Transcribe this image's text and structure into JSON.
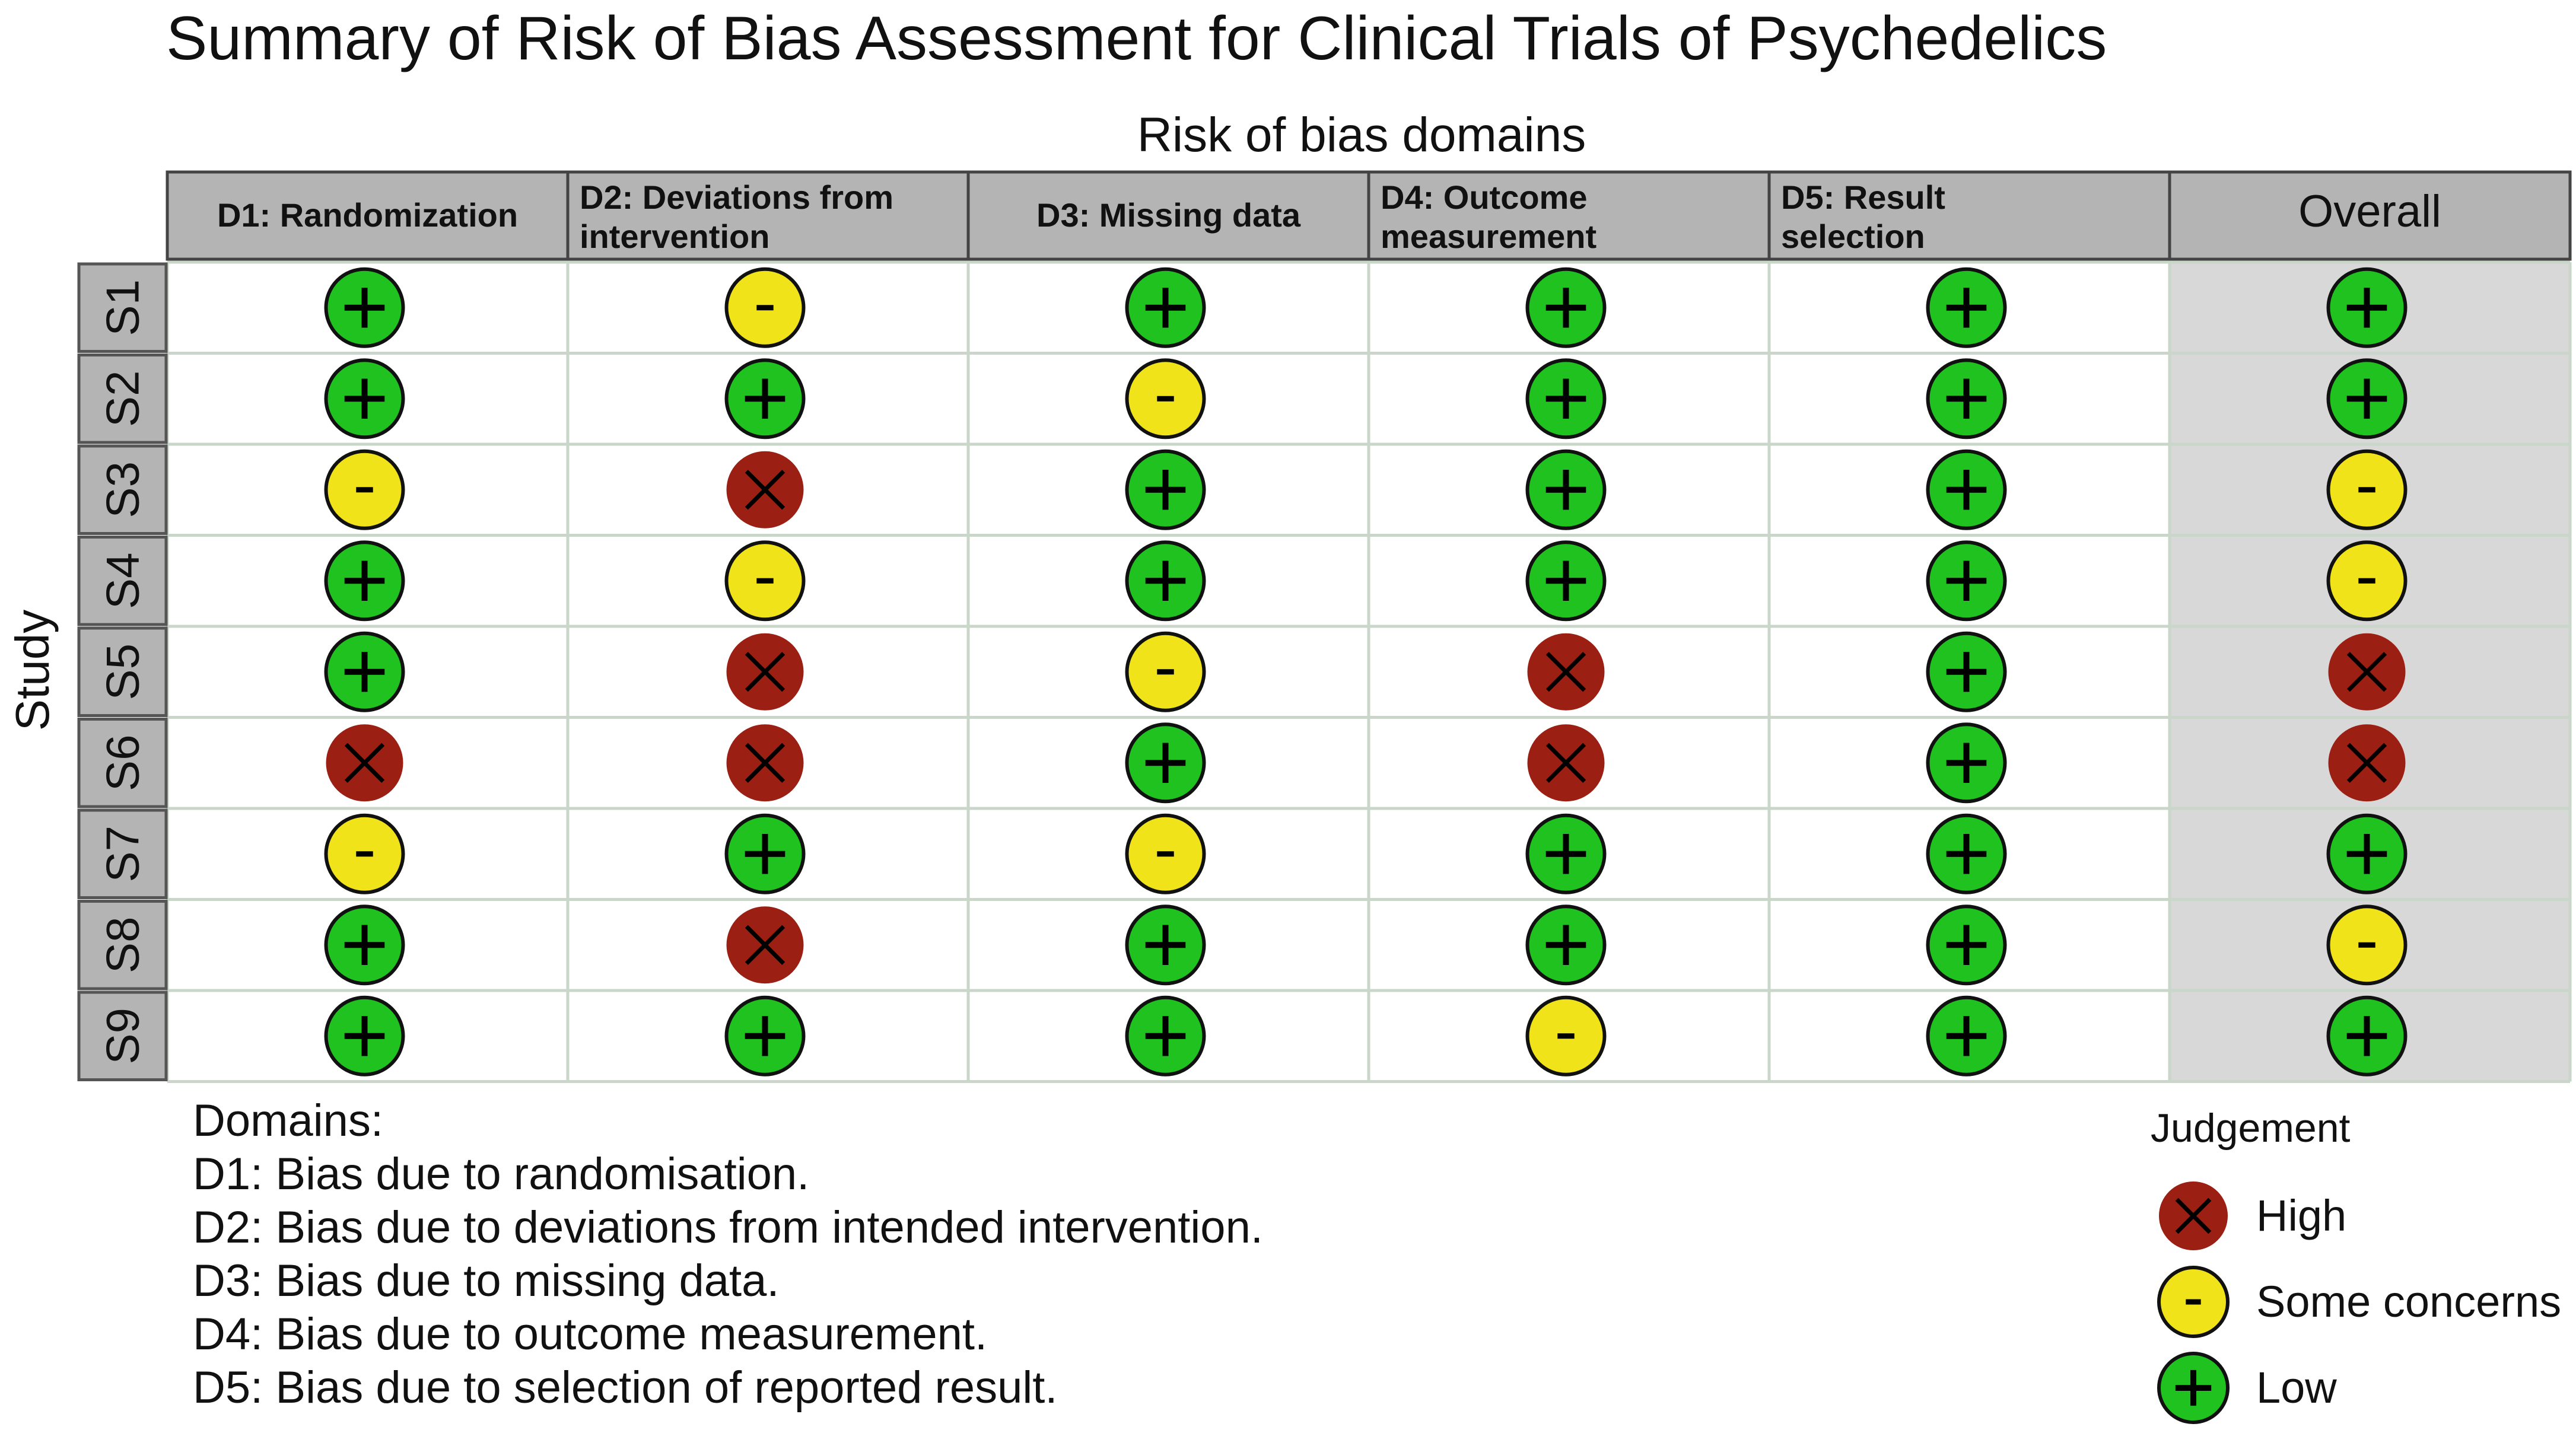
{
  "chart_data": {
    "type": "table",
    "title": "Summary of Risk of Bias Assessment for Clinical Trials of Psychedelics",
    "domains_label": "Risk of bias domains",
    "study_label": "Study",
    "columns": [
      {
        "line1": "D1: Randomization",
        "line2": ""
      },
      {
        "line1": "D2: Deviations from",
        "line2": "intervention"
      },
      {
        "line1": "D3: Missing data",
        "line2": ""
      },
      {
        "line1": "D4: Outcome",
        "line2": "measurement"
      },
      {
        "line1": "D5: Result",
        "line2": "selection"
      },
      {
        "line1": "Overall",
        "line2": ""
      }
    ],
    "studies": [
      "S1",
      "S2",
      "S3",
      "S4",
      "S5",
      "S6",
      "S7",
      "S8",
      "S9"
    ],
    "judgements": [
      [
        "low",
        "some",
        "low",
        "low",
        "low",
        "low"
      ],
      [
        "low",
        "low",
        "some",
        "low",
        "low",
        "low"
      ],
      [
        "some",
        "high",
        "low",
        "low",
        "low",
        "some"
      ],
      [
        "low",
        "some",
        "low",
        "low",
        "low",
        "some"
      ],
      [
        "low",
        "high",
        "some",
        "high",
        "low",
        "high"
      ],
      [
        "high",
        "high",
        "low",
        "high",
        "low",
        "high"
      ],
      [
        "some",
        "low",
        "some",
        "low",
        "low",
        "low"
      ],
      [
        "low",
        "high",
        "low",
        "low",
        "low",
        "some"
      ],
      [
        "low",
        "low",
        "low",
        "some",
        "low",
        "low"
      ]
    ],
    "domains_legend": {
      "heading": "Domains:",
      "items": [
        "D1: Bias due to randomisation.",
        "D2: Bias due to deviations from intended intervention.",
        "D3: Bias due to missing data.",
        "D4: Bias due to outcome measurement.",
        "D5: Bias due to selection of reported result."
      ]
    },
    "judgement_legend": {
      "heading": "Judgement",
      "items": [
        {
          "key": "high",
          "label": "High"
        },
        {
          "key": "some",
          "label": "Some concerns"
        },
        {
          "key": "low",
          "label": "Low"
        }
      ]
    },
    "colors": {
      "high": "#9b1f13",
      "some": "#f0e31a",
      "low": "#1fc21f",
      "header_bg": "#b4b4b4",
      "overall_bg": "#d8d8d8"
    }
  }
}
